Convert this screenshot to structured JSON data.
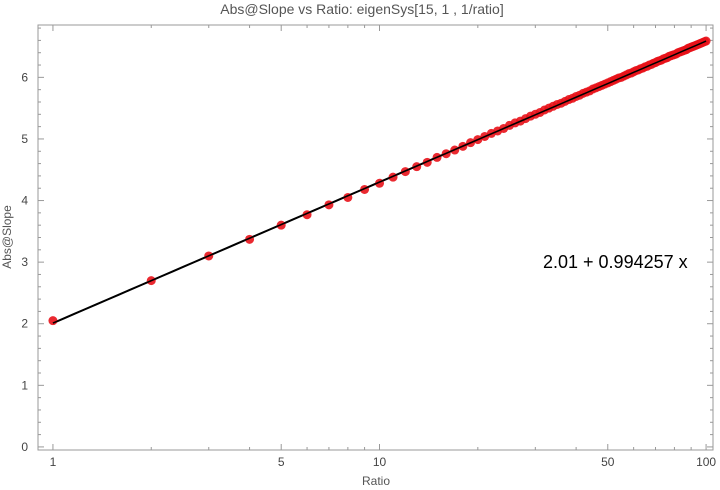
{
  "chart_data": {
    "type": "scatter",
    "title": "Abs@Slope vs Ratio: eigenSys[15, 1 , 1/ratio]",
    "xlabel": "Ratio",
    "ylabel": "Abs@Slope",
    "x_scale": "log",
    "xlim": [
      0.9,
      105
    ],
    "ylim": [
      -0.05,
      6.85
    ],
    "x_ticks": [
      {
        "value": 1,
        "label": "1"
      },
      {
        "value": 5,
        "label": "5"
      },
      {
        "value": 10,
        "label": "10"
      },
      {
        "value": 50,
        "label": "50"
      },
      {
        "value": 100,
        "label": "100"
      }
    ],
    "y_ticks": [
      {
        "value": 0,
        "label": "0"
      },
      {
        "value": 1,
        "label": "1"
      },
      {
        "value": 2,
        "label": "2"
      },
      {
        "value": 3,
        "label": "3"
      },
      {
        "value": 4,
        "label": "4"
      },
      {
        "value": 5,
        "label": "5"
      },
      {
        "value": 6,
        "label": "6"
      }
    ],
    "series": [
      {
        "marker_color": "#e8121a",
        "x": [
          1,
          2,
          3,
          4,
          5,
          6,
          7,
          8,
          9,
          10,
          11,
          12,
          13,
          14,
          15,
          16,
          17,
          18,
          19,
          20,
          21,
          22,
          23,
          24,
          25,
          26,
          27,
          28,
          29,
          30,
          31,
          32,
          33,
          34,
          35,
          36,
          37,
          38,
          39,
          40,
          41,
          42,
          43,
          44,
          45,
          46,
          47,
          48,
          49,
          50,
          51,
          52,
          53,
          54,
          55,
          56,
          57,
          58,
          59,
          60,
          61,
          62,
          63,
          64,
          65,
          66,
          67,
          68,
          69,
          70,
          71,
          72,
          73,
          74,
          75,
          76,
          77,
          78,
          79,
          80,
          81,
          82,
          83,
          84,
          85,
          86,
          87,
          88,
          89,
          90,
          91,
          92,
          93,
          94,
          95,
          96,
          97,
          98,
          99,
          100
        ],
        "y": [
          2.05,
          2.7,
          3.1,
          3.37,
          3.6,
          3.77,
          3.93,
          4.05,
          4.18,
          4.28,
          4.38,
          4.47,
          4.55,
          4.62,
          4.7,
          4.76,
          4.82,
          4.88,
          4.94,
          4.99,
          5.04,
          5.09,
          5.13,
          5.17,
          5.22,
          5.26,
          5.29,
          5.33,
          5.37,
          5.4,
          5.43,
          5.47,
          5.5,
          5.53,
          5.56,
          5.58,
          5.61,
          5.64,
          5.66,
          5.69,
          5.71,
          5.74,
          5.76,
          5.78,
          5.81,
          5.83,
          5.85,
          5.87,
          5.89,
          5.91,
          5.93,
          5.95,
          5.97,
          5.99,
          6.0,
          6.02,
          6.04,
          6.06,
          6.07,
          6.09,
          6.11,
          6.12,
          6.14,
          6.15,
          6.17,
          6.18,
          6.2,
          6.21,
          6.23,
          6.24,
          6.26,
          6.27,
          6.28,
          6.3,
          6.31,
          6.32,
          6.34,
          6.35,
          6.36,
          6.37,
          6.38,
          6.4,
          6.41,
          6.42,
          6.43,
          6.44,
          6.45,
          6.47,
          6.48,
          6.49,
          6.5,
          6.51,
          6.52,
          6.53,
          6.54,
          6.55,
          6.56,
          6.57,
          6.58,
          6.59
        ]
      }
    ],
    "fit_line": {
      "intercept": 2.01,
      "slope": 0.994257,
      "x_transform": "ln",
      "x_range": [
        1,
        100
      ],
      "color": "#000000"
    },
    "annotations": [
      {
        "text": "2.01 + 0.994257 x"
      }
    ],
    "grid": false
  }
}
